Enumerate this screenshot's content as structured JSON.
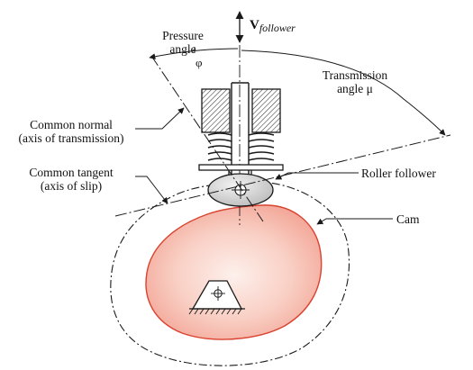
{
  "labels": {
    "pressure_angle_line1": "Pressure",
    "pressure_angle_line2": "angle",
    "phi": "φ",
    "velocity_main": "V",
    "velocity_sub": "follower",
    "transmission_line1": "Transmission",
    "transmission_line2": "angle μ",
    "common_normal_line1": "Common normal",
    "common_normal_line2": "(axis of transmission)",
    "common_tangent_line1": "Common tangent",
    "common_tangent_line2": "(axis of slip)",
    "roller_follower": "Roller follower",
    "cam": "Cam"
  },
  "colors": {
    "ink": "#1a1a1a",
    "cam_fill_center": "#fbe3dd",
    "cam_fill_edge": "#f3a99c",
    "cam_outline": "#d9432f",
    "roller_fill": "#d9d9d9",
    "background": "#ffffff"
  }
}
